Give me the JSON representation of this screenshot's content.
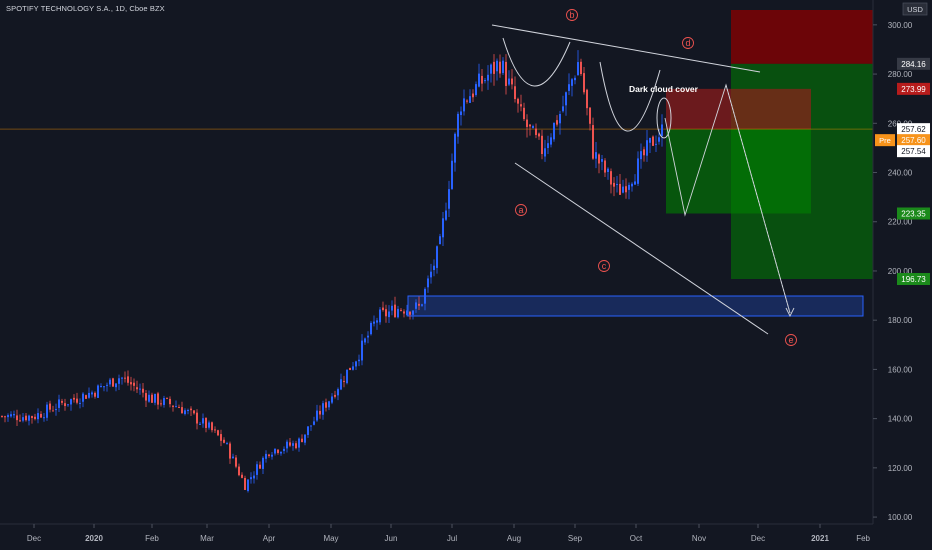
{
  "header": {
    "symbol": "SPOTIFY TECHNOLOGY S.A., 1D, Cboe BZX"
  },
  "price_axis": {
    "currency": "USD",
    "ticks": [
      100,
      120,
      140,
      160,
      180,
      200,
      220,
      240,
      260,
      280,
      300
    ],
    "ticks_visible": [
      "100.00",
      "120.00",
      "140.00",
      "160.00",
      "180.00",
      "200.00",
      "220.00",
      "240.00",
      "260.00",
      "280.00",
      "300.00"
    ],
    "badges": [
      {
        "label": "284.16",
        "value": 284.16,
        "bg": "#363a45",
        "fg": "#ffffff"
      },
      {
        "label": "273.99",
        "value": 273.99,
        "bg": "#b71c1c",
        "fg": "#ffffff"
      },
      {
        "label": "257.62",
        "value": 257.62,
        "bg": "#ffffff",
        "fg": "#131722"
      },
      {
        "label": "257.60",
        "value": 257.6,
        "bg": "#f7931a",
        "fg": "#ffffff",
        "prefix": "Pre"
      },
      {
        "label": "257.54",
        "value": 257.54,
        "bg": "#ffffff",
        "fg": "#131722"
      },
      {
        "label": "223.35",
        "value": 223.35,
        "bg": "#1b8a1b",
        "fg": "#ffffff"
      },
      {
        "label": "196.73",
        "value": 196.73,
        "bg": "#1b8a1b",
        "fg": "#ffffff"
      }
    ]
  },
  "time_axis": {
    "labels": [
      "Dec",
      "2020",
      "Feb",
      "Mar",
      "Apr",
      "May",
      "Jun",
      "Jul",
      "Aug",
      "Sep",
      "Oct",
      "Nov",
      "Dec",
      "2021",
      "Feb"
    ]
  },
  "annotations": {
    "pattern_text": "Dark cloud cover",
    "wave_labels": [
      "a",
      "b",
      "c",
      "d",
      "e"
    ]
  },
  "colors": {
    "background": "#131722",
    "up": "#2962ff",
    "down": "#ef5350",
    "trendline": "#d1d4dc",
    "zone_blue": "#2962ff",
    "loss_zone": "#8b0000",
    "profit_zone": "#008000"
  },
  "chart_data": {
    "type": "candlestick",
    "title": "SPOTIFY TECHNOLOGY S.A., 1D, Cboe BZX",
    "ylim": [
      98,
      304
    ],
    "x_months": [
      "Dec",
      "2020",
      "Feb",
      "Mar",
      "Apr",
      "May",
      "Jun",
      "Jul",
      "Aug",
      "Sep",
      "Oct"
    ],
    "close_path": [
      [
        "2019-12-01",
        141
      ],
      [
        "2019-12-15",
        146
      ],
      [
        "2020-01-01",
        151
      ],
      [
        "2020-01-15",
        157
      ],
      [
        "2020-02-01",
        148
      ],
      [
        "2020-02-15",
        145
      ],
      [
        "2020-03-01",
        137
      ],
      [
        "2020-03-10",
        130
      ],
      [
        "2020-03-20",
        113
      ],
      [
        "2020-04-01",
        127
      ],
      [
        "2020-04-15",
        130
      ],
      [
        "2020-05-01",
        149
      ],
      [
        "2020-05-15",
        166
      ],
      [
        "2020-05-25",
        181
      ],
      [
        "2020-06-05",
        185
      ],
      [
        "2020-06-15",
        185
      ],
      [
        "2020-06-25",
        210
      ],
      [
        "2020-07-05",
        268
      ],
      [
        "2020-07-15",
        276
      ],
      [
        "2020-07-25",
        285
      ],
      [
        "2020-08-05",
        262
      ],
      [
        "2020-08-15",
        249
      ],
      [
        "2020-08-25",
        265
      ],
      [
        "2020-09-03",
        286
      ],
      [
        "2020-09-10",
        248
      ],
      [
        "2020-09-22",
        232
      ],
      [
        "2020-10-01",
        241
      ],
      [
        "2020-10-10",
        254
      ],
      [
        "2020-10-15",
        257.6
      ]
    ],
    "last_price": 257.6,
    "levels": [
      284.16,
      273.99,
      257.62,
      257.54,
      223.35,
      196.73
    ]
  }
}
